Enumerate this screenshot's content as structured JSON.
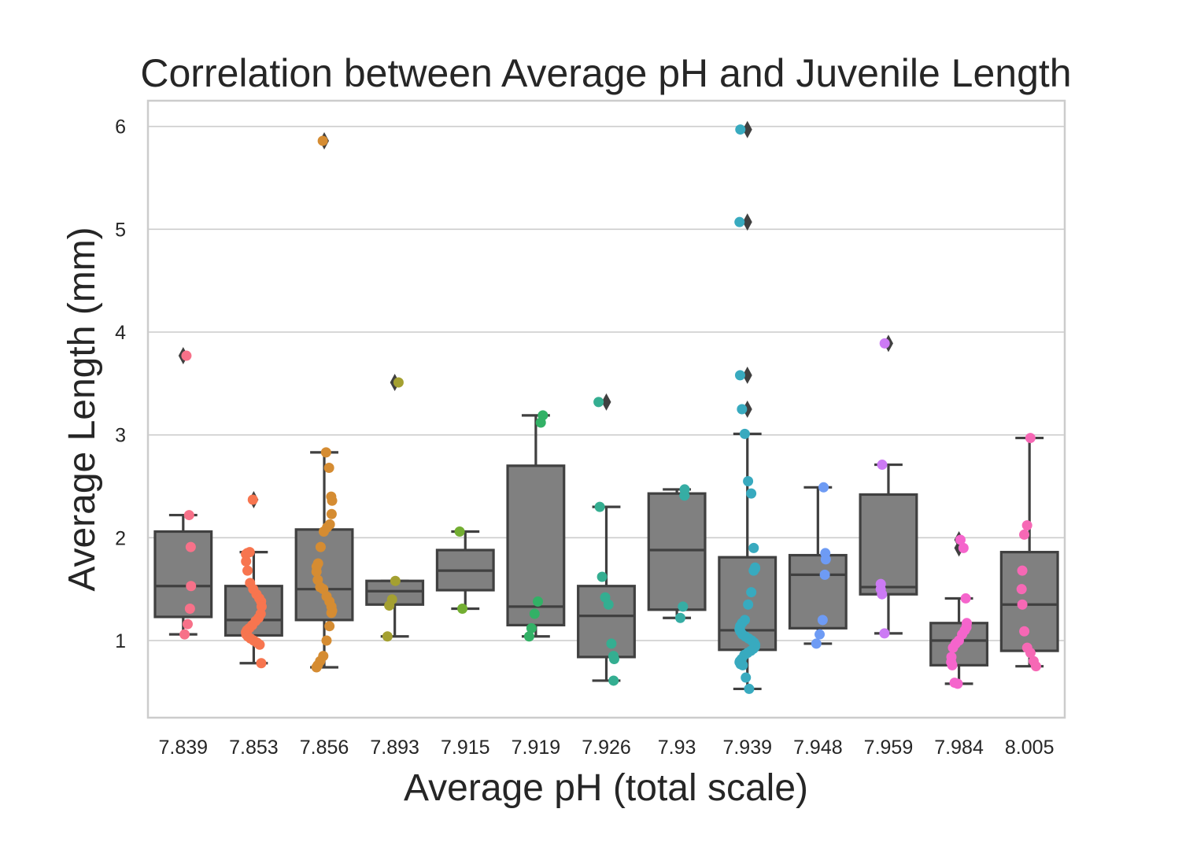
{
  "chart_data": {
    "type": "box",
    "title": "Correlation between Average pH and Juvenile Length",
    "xlabel": "Average pH (total scale)",
    "ylabel": "Average Length (mm)",
    "categories": [
      "7.839",
      "7.853",
      "7.856",
      "7.893",
      "7.915",
      "7.919",
      "7.926",
      "7.93",
      "7.939",
      "7.948",
      "7.959",
      "7.984",
      "8.005"
    ],
    "ylim": [
      0.25,
      6.25
    ],
    "yticks": [
      1,
      2,
      3,
      4,
      5,
      6
    ],
    "grid": true,
    "box_color": "#808080",
    "line_color": "#404040",
    "palette": [
      "#f77189",
      "#f7754f",
      "#d58c32",
      "#a4a031",
      "#73ae32",
      "#32b166",
      "#34ae91",
      "#36ada4",
      "#38aabf",
      "#6e9bf4",
      "#cc7af4",
      "#f565cc",
      "#f668b5"
    ],
    "boxes": [
      {
        "q1": 1.23,
        "median": 1.53,
        "q3": 2.06,
        "whisker_low": 1.06,
        "whisker_high": 2.22,
        "outliers": [
          3.77
        ]
      },
      {
        "q1": 1.05,
        "median": 1.2,
        "q3": 1.53,
        "whisker_low": 0.78,
        "whisker_high": 1.86,
        "outliers": [
          2.37
        ]
      },
      {
        "q1": 1.2,
        "median": 1.5,
        "q3": 2.08,
        "whisker_low": 0.74,
        "whisker_high": 2.83,
        "outliers": [
          5.86
        ]
      },
      {
        "q1": 1.35,
        "median": 1.48,
        "q3": 1.58,
        "whisker_low": 1.04,
        "whisker_high": 1.58,
        "outliers": [
          3.51
        ]
      },
      {
        "q1": 1.49,
        "median": 1.68,
        "q3": 1.88,
        "whisker_low": 1.31,
        "whisker_high": 2.06,
        "outliers": []
      },
      {
        "q1": 1.15,
        "median": 1.33,
        "q3": 2.7,
        "whisker_low": 1.04,
        "whisker_high": 3.19,
        "outliers": []
      },
      {
        "q1": 0.84,
        "median": 1.24,
        "q3": 1.53,
        "whisker_low": 0.61,
        "whisker_high": 2.3,
        "outliers": [
          3.32
        ]
      },
      {
        "q1": 1.3,
        "median": 1.88,
        "q3": 2.43,
        "whisker_low": 1.22,
        "whisker_high": 2.47,
        "outliers": []
      },
      {
        "q1": 0.91,
        "median": 1.1,
        "q3": 1.81,
        "whisker_low": 0.53,
        "whisker_high": 3.01,
        "outliers": [
          3.25,
          3.58,
          5.07,
          5.97
        ]
      },
      {
        "q1": 1.12,
        "median": 1.64,
        "q3": 1.83,
        "whisker_low": 0.97,
        "whisker_high": 2.49,
        "outliers": []
      },
      {
        "q1": 1.45,
        "median": 1.52,
        "q3": 2.42,
        "whisker_low": 1.07,
        "whisker_high": 2.71,
        "outliers": [
          3.89
        ]
      },
      {
        "q1": 0.76,
        "median": 1.0,
        "q3": 1.17,
        "whisker_low": 0.58,
        "whisker_high": 1.41,
        "outliers": [
          1.9,
          1.98
        ]
      },
      {
        "q1": 0.9,
        "median": 1.35,
        "q3": 1.86,
        "whisker_low": 0.75,
        "whisker_high": 2.97,
        "outliers": []
      }
    ],
    "points": [
      [
        3.77,
        2.22,
        1.91,
        1.53,
        1.31,
        1.16,
        1.06
      ],
      [
        2.37,
        1.86,
        1.85,
        1.84,
        1.77,
        1.68,
        1.56,
        1.5,
        1.45,
        1.41,
        1.38,
        1.33,
        1.26,
        1.22,
        1.19,
        1.15,
        1.12,
        1.1,
        1.08,
        1.06,
        1.04,
        1.02,
        1.0,
        0.98,
        0.96,
        0.78
      ],
      [
        5.86,
        2.83,
        2.68,
        2.4,
        2.36,
        2.23,
        2.13,
        2.1,
        2.06,
        1.91,
        1.75,
        1.72,
        1.67,
        1.59,
        1.52,
        1.5,
        1.43,
        1.38,
        1.33,
        1.29,
        1.27,
        1.14,
        1.0,
        0.85,
        0.8,
        0.76,
        0.74
      ],
      [
        3.51,
        1.58,
        1.4,
        1.34,
        1.04
      ],
      [
        2.06,
        1.31
      ],
      [
        3.19,
        3.12,
        1.38,
        1.26,
        1.12,
        1.04
      ],
      [
        3.32,
        2.3,
        1.62,
        1.42,
        1.35,
        0.97,
        0.85,
        0.82,
        0.61
      ],
      [
        2.47,
        2.41,
        1.33,
        1.22
      ],
      [
        5.97,
        5.07,
        3.58,
        3.25,
        3.01,
        2.55,
        2.43,
        1.9,
        1.71,
        1.7,
        1.68,
        1.47,
        1.35,
        1.2,
        1.17,
        1.14,
        1.11,
        1.09,
        1.06,
        1.04,
        1.02,
        1.0,
        0.98,
        0.96,
        0.94,
        0.92,
        0.9,
        0.88,
        0.86,
        0.82,
        0.8,
        0.79,
        0.77,
        0.76,
        0.64,
        0.53
      ],
      [
        2.49,
        1.85,
        1.79,
        1.64,
        1.2,
        1.06,
        0.97
      ],
      [
        3.89,
        2.71,
        1.55,
        1.5,
        1.45,
        1.07
      ],
      [
        1.98,
        1.9,
        1.41,
        1.17,
        1.13,
        1.1,
        1.06,
        1.0,
        0.97,
        0.93,
        0.84,
        0.79,
        0.76,
        0.59,
        0.58
      ],
      [
        2.97,
        2.12,
        2.03,
        1.68,
        1.5,
        1.35,
        1.09,
        0.93,
        0.88,
        0.8,
        0.75
      ]
    ]
  }
}
